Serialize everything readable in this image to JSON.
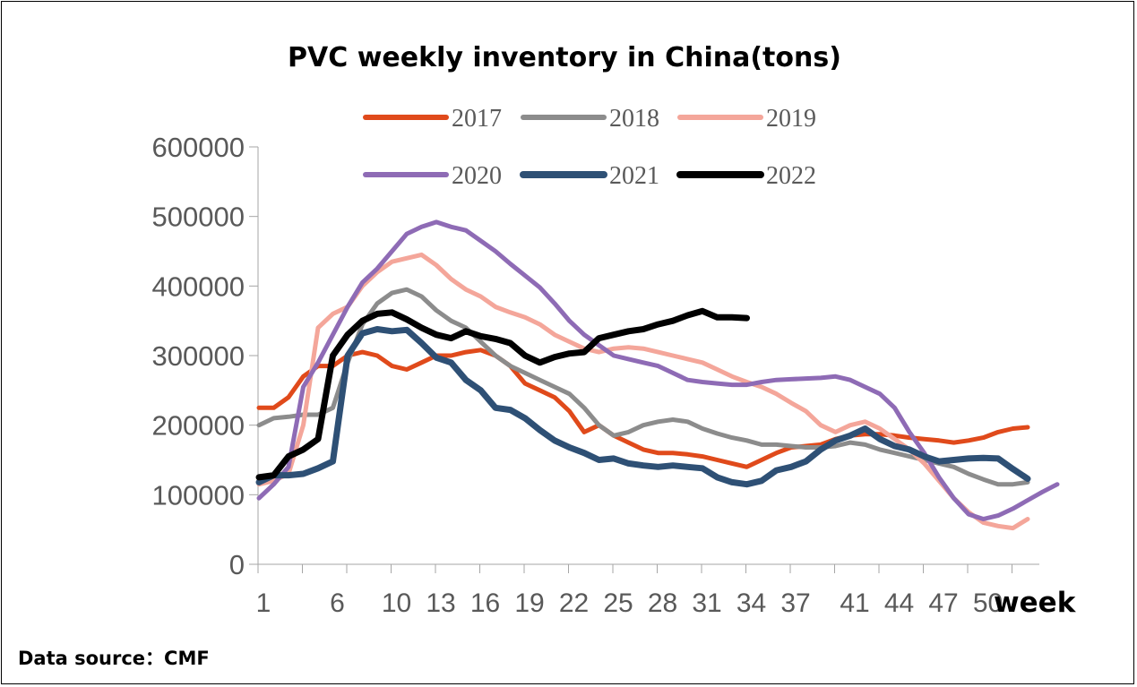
{
  "source_note": "Data source：CMF",
  "chart_data": {
    "type": "line",
    "title": "PVC weekly inventory in China(tons)",
    "xlabel": "week",
    "ylabel": "",
    "ylim": [
      0,
      600000
    ],
    "xlim": [
      1,
      53
    ],
    "yticks": [
      0,
      100000,
      200000,
      300000,
      400000,
      500000,
      600000
    ],
    "ytick_labels": [
      "0",
      "100000",
      "200000",
      "300000",
      "400000",
      "500000",
      "600000"
    ],
    "xticks": [
      1,
      6,
      10,
      13,
      16,
      19,
      22,
      25,
      28,
      31,
      34,
      37,
      41,
      44,
      47,
      50
    ],
    "xtick_labels": [
      "1",
      "6",
      "10",
      "13",
      "16",
      "19",
      "22",
      "25",
      "28",
      "31",
      "34",
      "37",
      "41",
      "44",
      "47",
      "50"
    ],
    "grid": false,
    "legend_position": "top",
    "series": [
      {
        "name": "2017",
        "color": "#E04A1B",
        "width": 5,
        "x": [
          1,
          2,
          3,
          4,
          5,
          6,
          7,
          8,
          9,
          10,
          11,
          12,
          13,
          14,
          15,
          16,
          17,
          18,
          19,
          20,
          21,
          22,
          23,
          24,
          25,
          26,
          27,
          28,
          29,
          30,
          31,
          32,
          33,
          34,
          35,
          36,
          37,
          38,
          39,
          40,
          41,
          42,
          43,
          44,
          45,
          46,
          47,
          48,
          49,
          50,
          51,
          52,
          53
        ],
        "values": [
          225000,
          225000,
          240000,
          270000,
          285000,
          285000,
          300000,
          305000,
          300000,
          285000,
          280000,
          290000,
          300000,
          300000,
          305000,
          308000,
          300000,
          285000,
          260000,
          250000,
          240000,
          220000,
          190000,
          200000,
          185000,
          175000,
          165000,
          160000,
          160000,
          158000,
          155000,
          150000,
          145000,
          140000,
          150000,
          160000,
          168000,
          170000,
          172000,
          180000,
          185000,
          187000,
          187000,
          185000,
          182000,
          180000,
          178000,
          175000,
          178000,
          182000,
          190000,
          195000,
          197000
        ]
      },
      {
        "name": "2018",
        "color": "#8C8C8C",
        "width": 5,
        "x": [
          1,
          2,
          3,
          4,
          5,
          6,
          7,
          8,
          9,
          10,
          11,
          12,
          13,
          14,
          15,
          16,
          17,
          18,
          19,
          20,
          21,
          22,
          23,
          24,
          25,
          26,
          27,
          28,
          29,
          30,
          31,
          32,
          33,
          34,
          35,
          36,
          37,
          38,
          39,
          40,
          41,
          42,
          43,
          44,
          45,
          46,
          47,
          48,
          49,
          50,
          51,
          52,
          53
        ],
        "values": [
          200000,
          210000,
          212000,
          215000,
          215000,
          225000,
          290000,
          345000,
          375000,
          390000,
          395000,
          385000,
          365000,
          350000,
          340000,
          320000,
          300000,
          285000,
          275000,
          265000,
          255000,
          245000,
          225000,
          200000,
          185000,
          190000,
          200000,
          205000,
          208000,
          205000,
          195000,
          188000,
          182000,
          178000,
          172000,
          172000,
          170000,
          168000,
          168000,
          170000,
          175000,
          172000,
          165000,
          160000,
          155000,
          150000,
          145000,
          140000,
          130000,
          122000,
          115000,
          115000,
          118000
        ]
      },
      {
        "name": "2019",
        "color": "#F4A69A",
        "width": 5,
        "x": [
          1,
          2,
          3,
          4,
          5,
          6,
          7,
          8,
          9,
          10,
          11,
          12,
          13,
          14,
          15,
          16,
          17,
          18,
          19,
          20,
          21,
          22,
          23,
          24,
          25,
          26,
          27,
          28,
          29,
          30,
          31,
          32,
          33,
          34,
          35,
          36,
          37,
          38,
          39,
          40,
          41,
          42,
          43,
          44,
          45,
          46,
          47,
          48,
          49,
          50,
          51,
          52,
          53
        ],
        "values": [
          115000,
          120000,
          130000,
          200000,
          340000,
          360000,
          370000,
          400000,
          420000,
          435000,
          440000,
          445000,
          430000,
          410000,
          395000,
          385000,
          370000,
          362000,
          355000,
          345000,
          330000,
          320000,
          310000,
          305000,
          310000,
          312000,
          310000,
          305000,
          300000,
          295000,
          290000,
          280000,
          270000,
          262000,
          255000,
          245000,
          232000,
          220000,
          200000,
          190000,
          200000,
          205000,
          195000,
          180000,
          165000,
          145000,
          120000,
          95000,
          75000,
          60000,
          55000,
          52000,
          65000
        ]
      },
      {
        "name": "2020",
        "color": "#8E6BB5",
        "width": 5,
        "x": [
          1,
          2,
          3,
          4,
          5,
          6,
          7,
          8,
          9,
          10,
          11,
          12,
          13,
          14,
          15,
          16,
          17,
          18,
          19,
          20,
          21,
          22,
          23,
          24,
          25,
          26,
          27,
          28,
          29,
          30,
          31,
          32,
          33,
          34,
          35,
          36,
          37,
          38,
          39,
          40,
          41,
          42,
          43,
          44,
          45,
          46,
          47,
          48,
          49,
          50,
          51,
          52,
          53,
          54,
          55
        ],
        "values": [
          95000,
          115000,
          140000,
          255000,
          290000,
          330000,
          370000,
          405000,
          425000,
          450000,
          475000,
          485000,
          492000,
          485000,
          480000,
          465000,
          450000,
          432000,
          415000,
          398000,
          375000,
          350000,
          330000,
          315000,
          300000,
          295000,
          290000,
          285000,
          275000,
          265000,
          262000,
          260000,
          258000,
          258000,
          262000,
          265000,
          266000,
          267000,
          268000,
          270000,
          265000,
          255000,
          245000,
          225000,
          190000,
          160000,
          125000,
          95000,
          72000,
          65000,
          70000,
          80000,
          92000,
          104000,
          115000
        ]
      },
      {
        "name": "2021",
        "color": "#2E5075",
        "width": 7,
        "x": [
          1,
          2,
          3,
          4,
          5,
          6,
          7,
          8,
          9,
          10,
          11,
          12,
          13,
          14,
          15,
          16,
          17,
          18,
          19,
          20,
          21,
          22,
          23,
          24,
          25,
          26,
          27,
          28,
          29,
          30,
          31,
          32,
          33,
          34,
          35,
          36,
          37,
          38,
          39,
          40,
          41,
          42,
          43,
          44,
          45,
          46,
          47,
          48,
          49,
          50,
          51,
          52,
          53
        ],
        "values": [
          118000,
          128000,
          128000,
          130000,
          138000,
          148000,
          300000,
          332000,
          338000,
          335000,
          337000,
          318000,
          297000,
          290000,
          265000,
          250000,
          225000,
          222000,
          210000,
          193000,
          178000,
          168000,
          160000,
          150000,
          152000,
          145000,
          142000,
          140000,
          142000,
          140000,
          138000,
          125000,
          118000,
          115000,
          120000,
          135000,
          140000,
          148000,
          165000,
          178000,
          185000,
          195000,
          180000,
          170000,
          165000,
          155000,
          148000,
          150000,
          152000,
          153000,
          152000,
          137000,
          123000
        ]
      },
      {
        "name": "2022",
        "color": "#000000",
        "width": 7,
        "x": [
          1,
          2,
          3,
          4,
          5,
          6,
          7,
          8,
          9,
          10,
          11,
          12,
          13,
          14,
          15,
          16,
          17,
          18,
          19,
          20,
          21,
          22,
          23,
          24,
          25,
          26,
          27,
          28,
          29,
          30,
          31,
          32,
          33,
          34
        ],
        "values": [
          125000,
          128000,
          155000,
          165000,
          180000,
          300000,
          330000,
          350000,
          360000,
          362000,
          352000,
          340000,
          330000,
          325000,
          335000,
          328000,
          324000,
          318000,
          300000,
          290000,
          298000,
          303000,
          305000,
          325000,
          330000,
          335000,
          338000,
          345000,
          350000,
          358000,
          364000,
          355000,
          355000,
          354000
        ]
      }
    ]
  }
}
